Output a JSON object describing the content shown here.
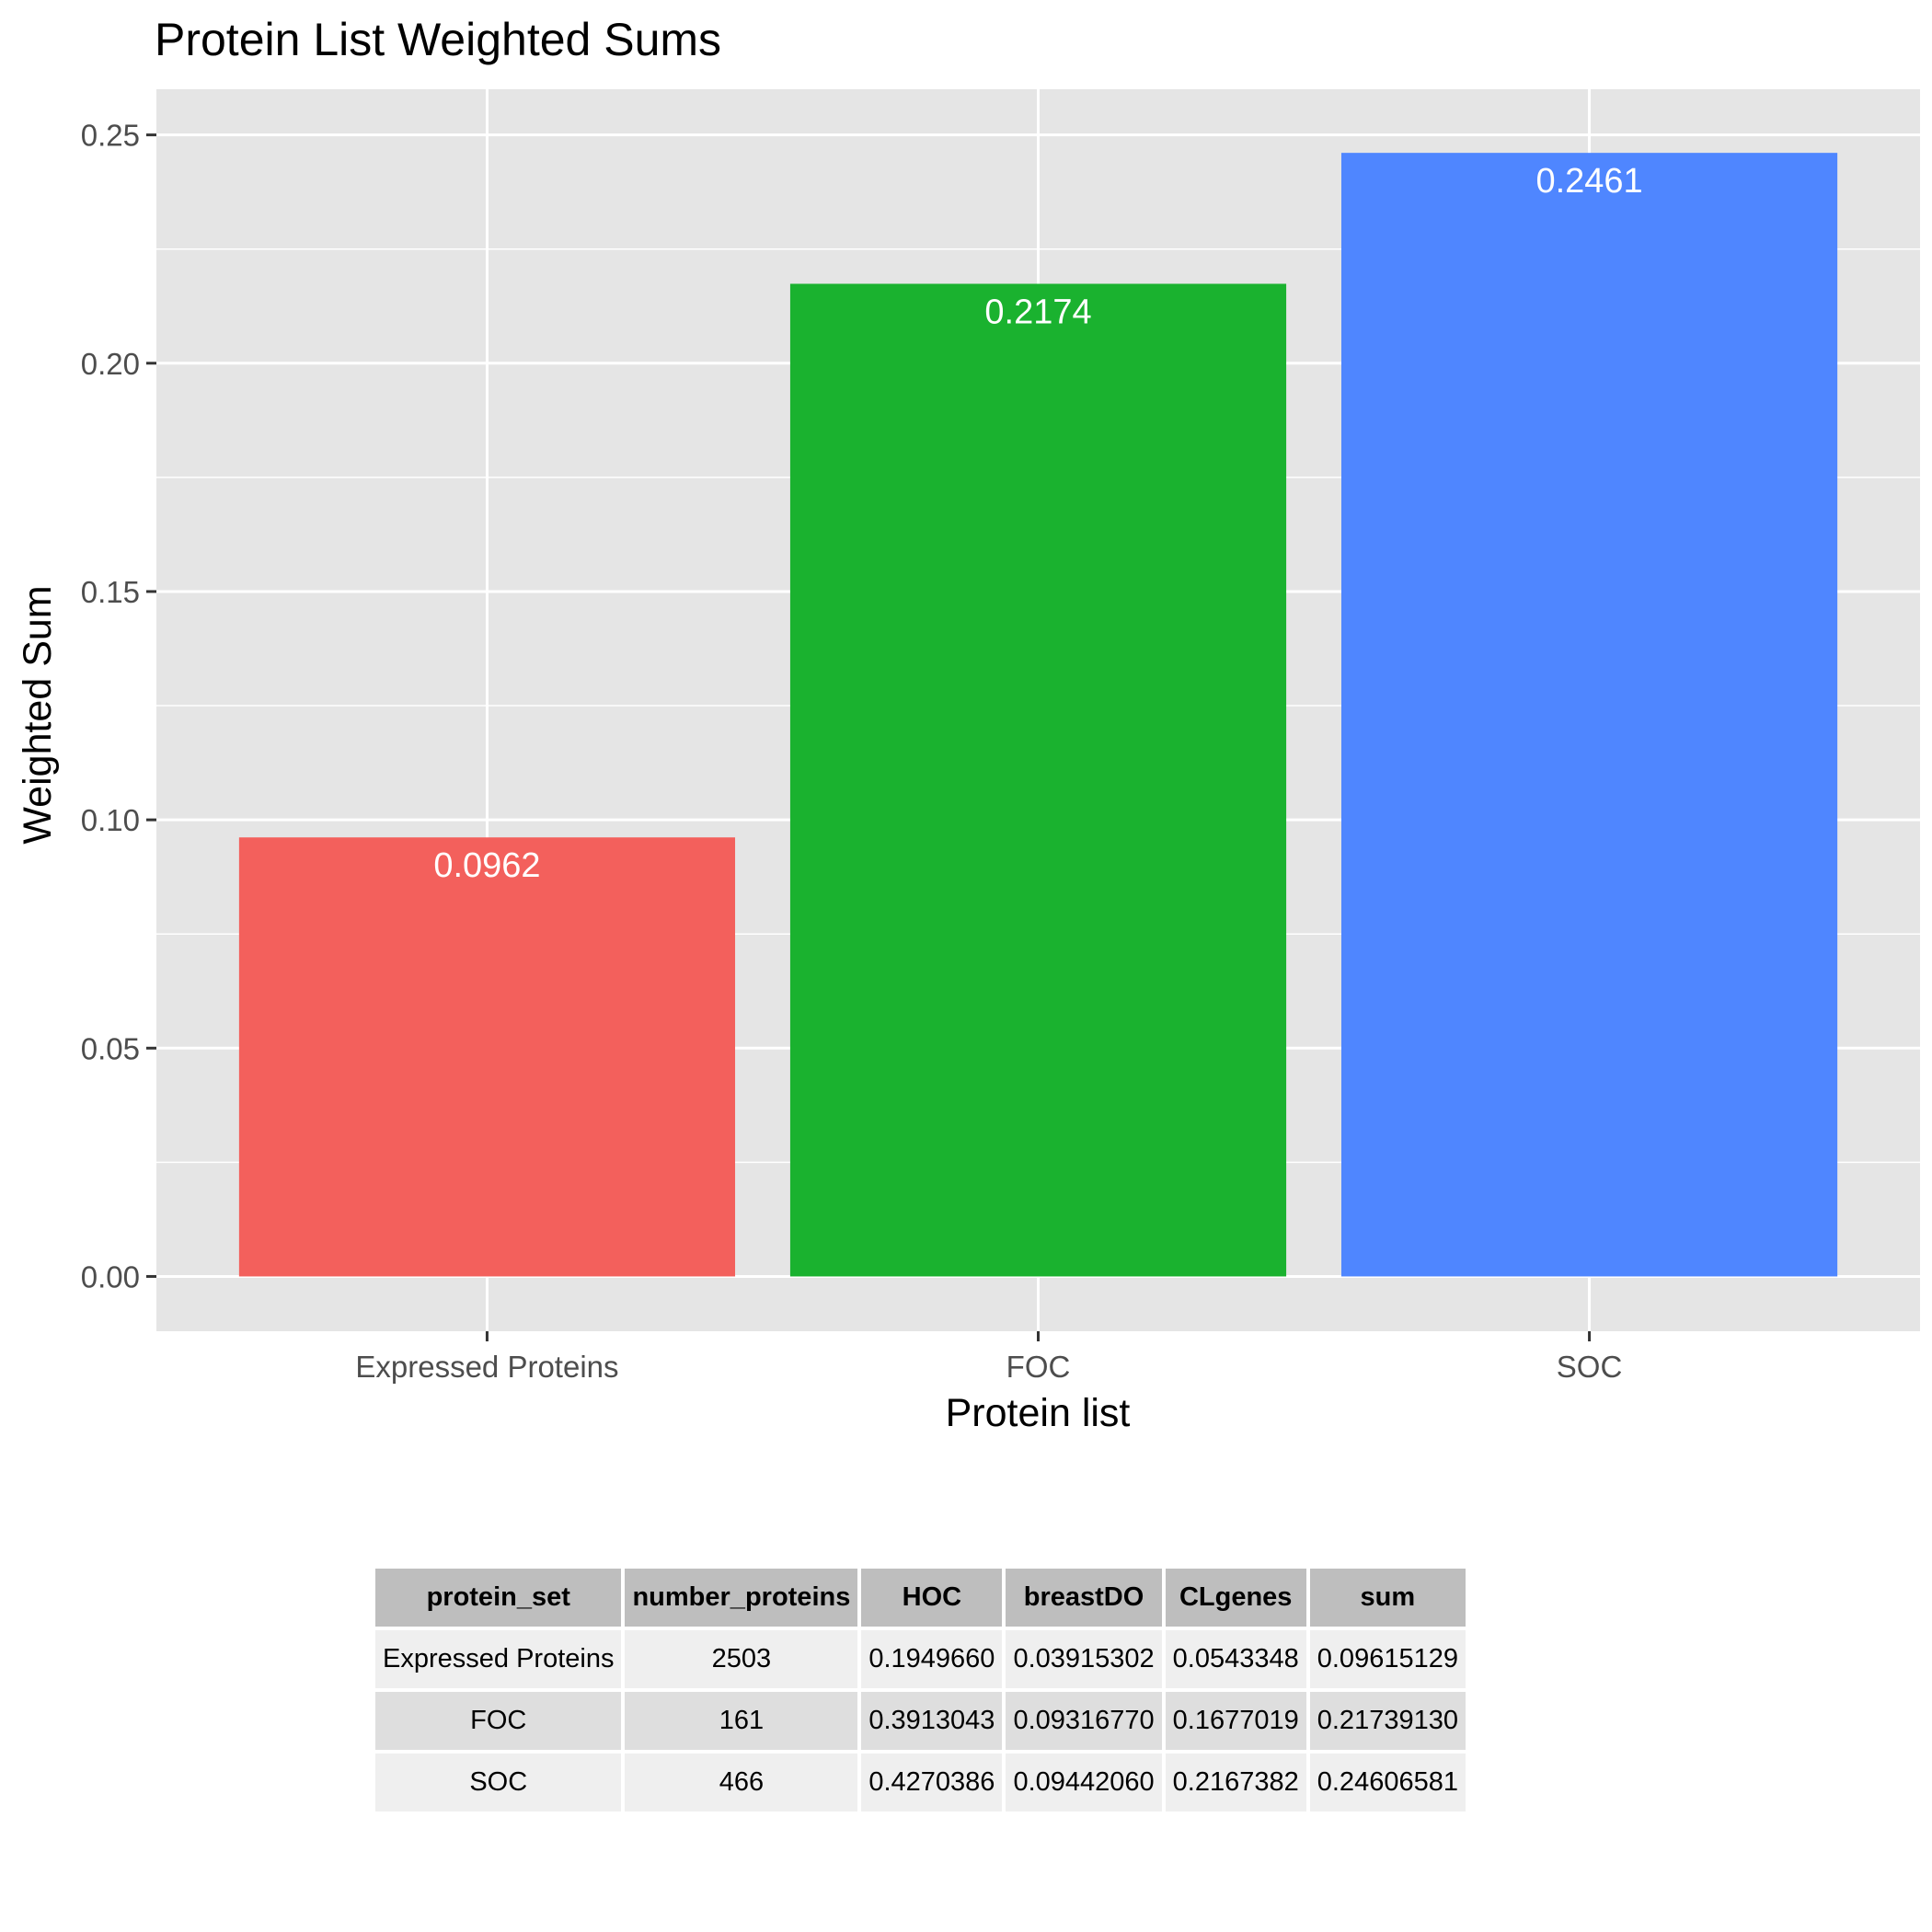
{
  "chart_data": {
    "type": "bar",
    "title": "Protein List Weighted Sums",
    "xlabel": "Protein list",
    "ylabel": "Weighted Sum",
    "categories": [
      "Expressed Proteins",
      "FOC",
      "SOC"
    ],
    "values": [
      0.09615129,
      0.2173913,
      0.24606581
    ],
    "data_labels": [
      "0.0962",
      "0.2174",
      "0.2461"
    ],
    "colors": [
      "#F3605C",
      "#1AB22F",
      "#4F86FF"
    ],
    "ylim": [
      -0.012,
      0.26
    ],
    "yticks": [
      0,
      0.05,
      0.1,
      0.15,
      0.2,
      0.25
    ],
    "ytick_labels": [
      "0.00",
      "0.05",
      "0.10",
      "0.15",
      "0.20",
      "0.25"
    ],
    "grid": true,
    "legend": "none",
    "panel_background": "#E5E5E5"
  },
  "table": {
    "headers": [
      "protein_set",
      "number_proteins",
      "HOC",
      "breastDO",
      "CLgenes",
      "sum"
    ],
    "rows": [
      [
        "Expressed Proteins",
        "2503",
        "0.1949660",
        "0.03915302",
        "0.0543348",
        "0.09615129"
      ],
      [
        "FOC",
        "161",
        "0.3913043",
        "0.09316770",
        "0.1677019",
        "0.21739130"
      ],
      [
        "SOC",
        "466",
        "0.4270386",
        "0.09442060",
        "0.2167382",
        "0.24606581"
      ]
    ]
  }
}
